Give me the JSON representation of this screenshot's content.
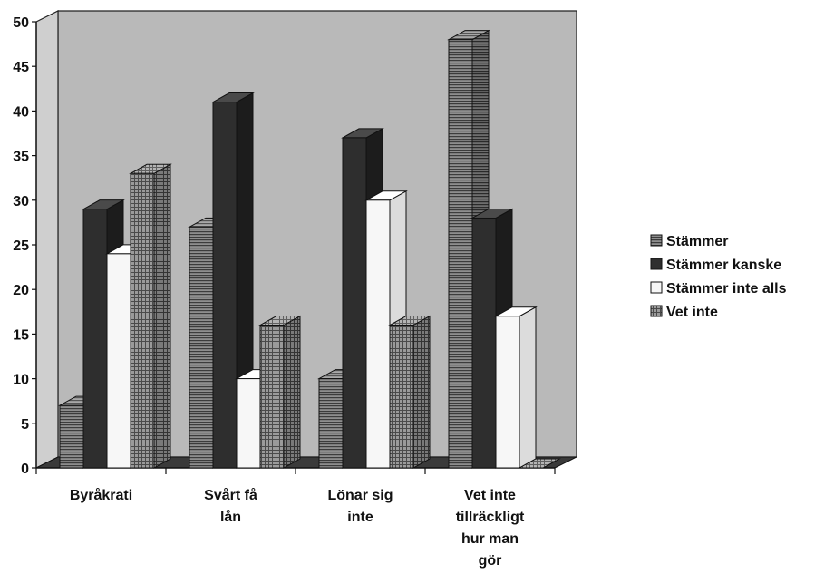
{
  "chart_data": {
    "type": "bar",
    "title": "",
    "xlabel": "",
    "ylabel": "",
    "ylim": [
      0,
      50
    ],
    "yticks": [
      0,
      5,
      10,
      15,
      20,
      25,
      30,
      35,
      40,
      45,
      50
    ],
    "grid": false,
    "legend_position": "right",
    "categories": [
      [
        "Byråkrati"
      ],
      [
        "Svårt få",
        "lån"
      ],
      [
        "Lönar sig",
        "inte"
      ],
      [
        "Vet inte",
        "tillräckligt",
        "hur man",
        "gör"
      ]
    ],
    "series": [
      {
        "name": "Stämmer",
        "pattern": "hlines",
        "values": [
          7,
          27,
          10,
          48
        ]
      },
      {
        "name": "Stämmer kanske",
        "pattern": "dark",
        "values": [
          29,
          41,
          37,
          28
        ]
      },
      {
        "name": "Stämmer inte alls",
        "pattern": "white",
        "values": [
          24,
          10,
          30,
          17
        ]
      },
      {
        "name": "Vet inte",
        "pattern": "grid",
        "values": [
          33,
          16,
          16,
          0
        ]
      }
    ]
  },
  "colors": {
    "plot_wall": "#b9b9b9",
    "floor": "#3a3a3a",
    "dark_front": "#2e2e2e",
    "dark_top": "#4a4a4a",
    "dark_side": "#1c1c1c",
    "white_front": "#f7f7f7",
    "white_top": "#ffffff",
    "white_side": "#dcdcdc"
  }
}
